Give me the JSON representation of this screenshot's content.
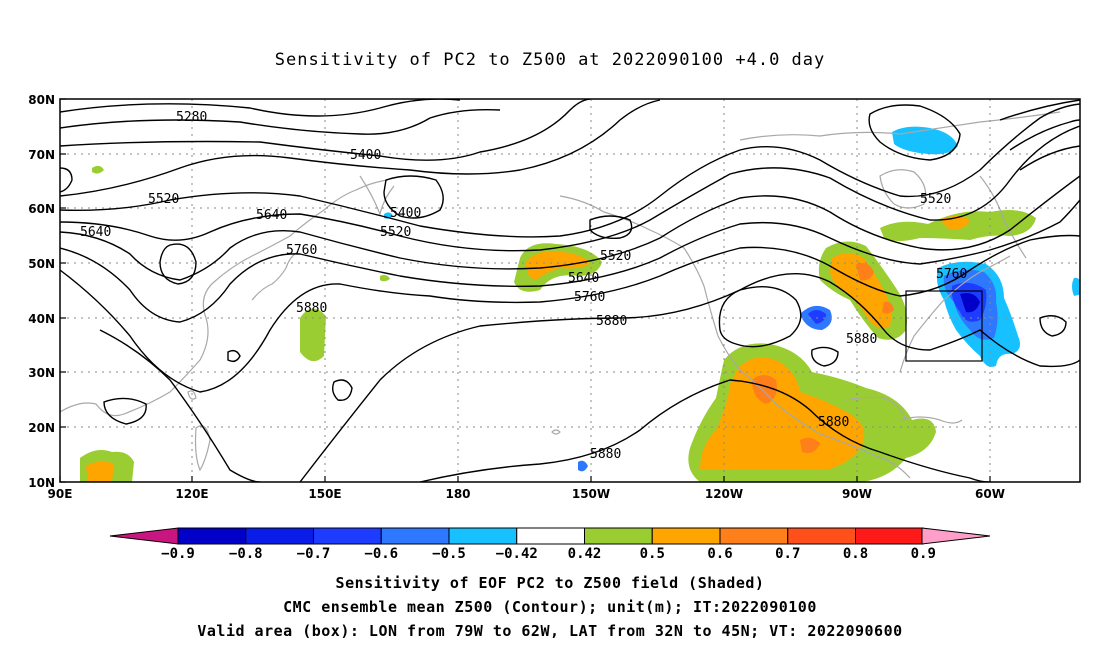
{
  "title": "Sensitivity of PC2 to Z500 at 2022090100 +4.0 day",
  "map": {
    "projection": "cylindrical equidistant",
    "lon_range": [
      "90E",
      "40W"
    ],
    "lat_range": [
      "10N",
      "80N"
    ],
    "lat_ticks": [
      "80N",
      "70N",
      "60N",
      "50N",
      "40N",
      "30N",
      "20N",
      "10N"
    ],
    "lon_ticks": [
      "90E",
      "120E",
      "150E",
      "180",
      "150W",
      "120W",
      "90W",
      "60W"
    ],
    "grid": "dotted",
    "contour_labels": [
      "5280",
      "5400",
      "5520",
      "5400",
      "5520",
      "5640",
      "5640",
      "5760",
      "5520",
      "5640",
      "5760",
      "5880",
      "5880",
      "5880",
      "5880",
      "5880",
      "5520",
      "5760"
    ],
    "valid_box": "79W to 62W, 32N to 45N"
  },
  "colorbar": {
    "colors": [
      "#c8157f",
      "#0000c8",
      "#0a1de8",
      "#1e3cff",
      "#2d78ff",
      "#17c1ff",
      "#ffffff",
      "#9acd32",
      "#ffa500",
      "#ff7f1a",
      "#ff4f1a",
      "#ff1a1a",
      "#ff9ec8"
    ],
    "labels": [
      "−0.9",
      "−0.8",
      "−0.7",
      "−0.6",
      "−0.5",
      "−0.42",
      "0.42",
      "0.5",
      "0.6",
      "0.7",
      "0.8",
      "0.9"
    ]
  },
  "captions": {
    "line1": "Sensitivity of EOF PC2 to Z500 field (Shaded)",
    "line2": "CMC ensemble mean Z500 (Contour); unit(m); IT:2022090100",
    "line3": "Valid area (box): LON from 79W to 62W, LAT from 32N to 45N; VT: 2022090600"
  }
}
